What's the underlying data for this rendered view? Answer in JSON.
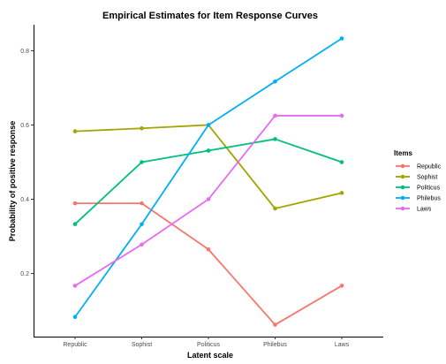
{
  "chart_data": {
    "type": "line",
    "title": "Empirical Estimates for Item Response Curves",
    "xlabel": "Latent scale",
    "ylabel": "Probability of positive response",
    "categories": [
      "Republic",
      "Sophist",
      "Politicus",
      "Philebus",
      "Laws"
    ],
    "ylim": [
      0.03,
      0.87
    ],
    "yticks": [
      0.2,
      0.4,
      0.6,
      0.8
    ],
    "ytick_labels": [
      "0.2",
      "0.4",
      "0.6",
      "0.8"
    ],
    "grid": false,
    "legend": {
      "title": "Items",
      "position": "right"
    },
    "series": [
      {
        "name": "Republic",
        "color": "#F8766D",
        "values": [
          0.389,
          0.389,
          0.265,
          0.062,
          0.167
        ]
      },
      {
        "name": "Sophist",
        "color": "#A3A500",
        "values": [
          0.583,
          0.591,
          0.6,
          0.375,
          0.417
        ]
      },
      {
        "name": "Politicus",
        "color": "#00BF7D",
        "values": [
          0.333,
          0.5,
          0.531,
          0.562,
          0.5
        ]
      },
      {
        "name": "Philebus",
        "color": "#00B0F6",
        "values": [
          0.083,
          0.333,
          0.6,
          0.717,
          0.833
        ]
      },
      {
        "name": "Laws",
        "color": "#E76BF3",
        "values": [
          0.167,
          0.278,
          0.4,
          0.625,
          0.625
        ]
      }
    ]
  }
}
